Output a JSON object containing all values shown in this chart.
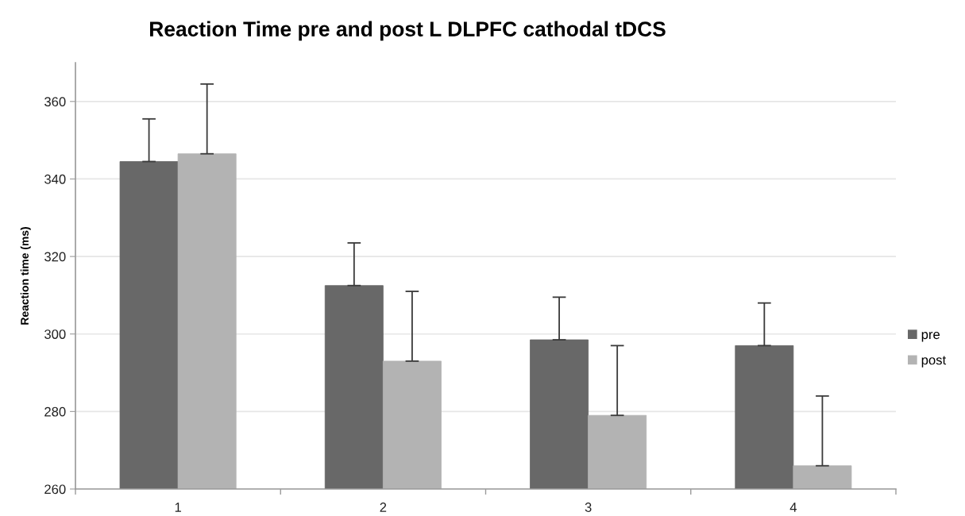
{
  "chart_data": {
    "type": "bar",
    "title": "Reaction Time pre and post L DLPFC cathodal tDCS",
    "ylabel": "Reaction time (ms)",
    "categories": [
      "1",
      "2",
      "3",
      "4"
    ],
    "series": [
      {
        "name": "pre",
        "color": "#686868",
        "values": [
          344.5,
          312.5,
          298.5,
          297
        ],
        "errors": [
          [
            344.5,
            355.5
          ],
          [
            312.5,
            323.5
          ],
          [
            298.5,
            309.5
          ],
          [
            297,
            308
          ]
        ]
      },
      {
        "name": "post",
        "color": "#b3b3b3",
        "values": [
          346.5,
          293,
          279,
          266
        ],
        "errors": [
          [
            346.5,
            364.5
          ],
          [
            293,
            311
          ],
          [
            279,
            297
          ],
          [
            266,
            284
          ]
        ]
      }
    ],
    "ylim": [
      260,
      370
    ],
    "yticks": [
      260,
      280,
      300,
      320,
      340,
      360
    ],
    "grid": "y",
    "legend": "right"
  }
}
